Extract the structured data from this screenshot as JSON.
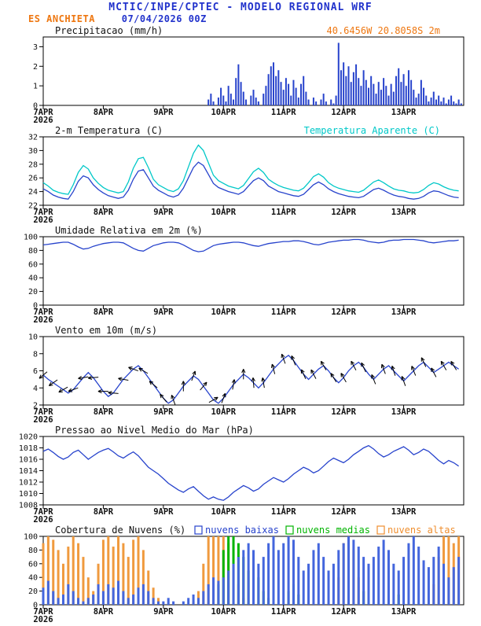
{
  "header": {
    "title": "MCTIC/INPE/CPTEC - MODELO REGIONAL WRF",
    "station": "ES ANCHIETA",
    "run": "07/04/2026 00Z",
    "colors": {
      "title_blue": "#2233cc",
      "station_orange": "#ee7711"
    }
  },
  "axis": {
    "x_hours": 168,
    "xtick_hours": [
      0,
      24,
      48,
      72,
      96,
      120,
      144
    ],
    "xtick_labels": [
      "7APR",
      "8APR",
      "9APR",
      "10APR",
      "11APR",
      "12APR",
      "13APR"
    ],
    "year_label": "2026"
  },
  "chart_data": [
    {
      "id": "precipitacao",
      "type": "bar",
      "title": "Precipitacao (mm/h)",
      "right_label": "40.6456W 20.8058S 2m",
      "right_label_color": "#ee7711",
      "ylabel": "mm/h",
      "ylim": [
        0,
        3.5
      ],
      "yticks": [
        0,
        1,
        2,
        3
      ],
      "step_hours": 1,
      "color": "#2743cc",
      "values": [
        0,
        0,
        0,
        0,
        0,
        0,
        0,
        0,
        0,
        0,
        0,
        0,
        0,
        0,
        0,
        0,
        0,
        0,
        0,
        0,
        0,
        0,
        0,
        0,
        0,
        0,
        0,
        0,
        0,
        0,
        0,
        0,
        0,
        0,
        0,
        0,
        0,
        0,
        0,
        0,
        0,
        0,
        0,
        0,
        0,
        0,
        0,
        0,
        0,
        0,
        0,
        0,
        0,
        0,
        0,
        0,
        0,
        0,
        0,
        0,
        0,
        0,
        0,
        0,
        0,
        0,
        0.3,
        0.6,
        0.2,
        0,
        0.4,
        0.9,
        0.5,
        0.2,
        1.0,
        0.6,
        0.3,
        1.4,
        2.1,
        1.2,
        0.7,
        0.3,
        0,
        0.5,
        0.8,
        0.4,
        0.2,
        0,
        0.6,
        1.0,
        1.6,
        2.0,
        2.2,
        1.5,
        1.8,
        1.2,
        0.8,
        1.4,
        1.1,
        0.5,
        1.3,
        0.9,
        0.4,
        1.1,
        1.5,
        0.7,
        0.3,
        0,
        0.4,
        0.2,
        0,
        0.3,
        0.6,
        0.2,
        0,
        0.3,
        0.1,
        0.5,
        3.2,
        1.8,
        2.2,
        1.5,
        2.0,
        1.2,
        1.7,
        2.1,
        1.4,
        1.0,
        1.8,
        1.3,
        0.9,
        1.5,
        1.1,
        0.6,
        1.2,
        0.8,
        1.4,
        1.0,
        0.5,
        1.1,
        0.7,
        1.5,
        1.9,
        1.2,
        1.6,
        1.0,
        1.8,
        1.3,
        0.8,
        0.4,
        0.6,
        1.3,
        0.9,
        0.5,
        0.2,
        0.4,
        0.7,
        0.3,
        0.5,
        0.2,
        0.4,
        0.1,
        0.3,
        0.5,
        0.2,
        0.1,
        0.3,
        0.1
      ]
    },
    {
      "id": "temperatura",
      "type": "line",
      "title": "2-m Temperatura (C)",
      "right_label": "Temperatura Aparente (C)",
      "right_label_color": "#00c8c8",
      "ylim": [
        22,
        32
      ],
      "yticks": [
        22,
        24,
        26,
        28,
        30,
        32
      ],
      "step_hours": 2,
      "series": [
        {
          "name": "2-m Temperatura (C)",
          "color": "#2743cc",
          "values": [
            24.4,
            24.0,
            23.5,
            23.2,
            23.0,
            22.9,
            24.0,
            25.5,
            26.3,
            26.0,
            25.0,
            24.3,
            23.8,
            23.4,
            23.2,
            23.0,
            23.2,
            24.2,
            25.8,
            27.0,
            27.2,
            26.0,
            24.8,
            24.2,
            23.8,
            23.4,
            23.2,
            23.5,
            24.5,
            26.0,
            27.5,
            28.3,
            27.8,
            26.5,
            25.2,
            24.6,
            24.3,
            24.0,
            23.8,
            23.6,
            24.0,
            24.8,
            25.6,
            26.0,
            25.6,
            24.8,
            24.4,
            24.0,
            23.8,
            23.6,
            23.4,
            23.3,
            23.6,
            24.3,
            25.0,
            25.4,
            25.0,
            24.4,
            24.0,
            23.7,
            23.5,
            23.3,
            23.2,
            23.1,
            23.3,
            23.8,
            24.3,
            24.5,
            24.2,
            23.8,
            23.5,
            23.3,
            23.2,
            23.0,
            22.9,
            23.0,
            23.3,
            23.8,
            24.1,
            24.0,
            23.7,
            23.4,
            23.2,
            23.1
          ]
        },
        {
          "name": "Temperatura Aparente (C)",
          "color": "#00c8c8",
          "values": [
            25.3,
            24.8,
            24.2,
            23.9,
            23.7,
            23.6,
            25.0,
            26.8,
            27.8,
            27.3,
            26.0,
            25.2,
            24.6,
            24.2,
            24.0,
            23.8,
            24.0,
            25.4,
            27.4,
            28.8,
            29.0,
            27.5,
            25.8,
            25.0,
            24.6,
            24.2,
            24.0,
            24.4,
            25.6,
            27.6,
            29.6,
            30.8,
            30.0,
            28.2,
            26.4,
            25.6,
            25.2,
            24.8,
            24.6,
            24.4,
            24.9,
            25.9,
            26.9,
            27.4,
            26.8,
            25.8,
            25.3,
            24.9,
            24.6,
            24.4,
            24.2,
            24.1,
            24.5,
            25.3,
            26.2,
            26.6,
            26.1,
            25.3,
            24.8,
            24.5,
            24.3,
            24.1,
            24.0,
            23.9,
            24.2,
            24.8,
            25.4,
            25.7,
            25.3,
            24.8,
            24.4,
            24.2,
            24.1,
            23.9,
            23.8,
            23.9,
            24.3,
            24.9,
            25.3,
            25.1,
            24.7,
            24.4,
            24.2,
            24.1
          ]
        }
      ]
    },
    {
      "id": "umidade",
      "type": "line",
      "title": "Umidade Relativa em 2m (%)",
      "ylim": [
        0,
        100
      ],
      "yticks": [
        0,
        20,
        40,
        60,
        80,
        100
      ],
      "step_hours": 2,
      "series": [
        {
          "name": "Umidade Relativa em 2m (%)",
          "color": "#2743cc",
          "values": [
            88,
            89,
            90,
            91,
            92,
            92,
            89,
            85,
            82,
            83,
            86,
            88,
            90,
            91,
            92,
            92,
            91,
            87,
            83,
            80,
            79,
            83,
            87,
            89,
            91,
            92,
            92,
            91,
            88,
            84,
            80,
            78,
            79,
            83,
            87,
            89,
            90,
            91,
            92,
            92,
            91,
            89,
            87,
            86,
            88,
            90,
            91,
            92,
            93,
            93,
            94,
            94,
            93,
            91,
            89,
            88,
            90,
            92,
            93,
            94,
            95,
            95,
            96,
            96,
            95,
            93,
            92,
            91,
            92,
            94,
            95,
            95,
            96,
            96,
            96,
            95,
            94,
            92,
            91,
            92,
            93,
            94,
            94,
            95
          ]
        }
      ]
    },
    {
      "id": "vento",
      "type": "line_barbs",
      "title": "Vento em 10m (m/s)",
      "ylim": [
        2,
        10
      ],
      "yticks": [
        2,
        4,
        6,
        8,
        10
      ],
      "step_hours": 2,
      "series": [
        {
          "name": "Vento em 10m (m/s)",
          "color": "#2743cc",
          "values": [
            5.5,
            5.0,
            4.6,
            4.2,
            3.8,
            3.4,
            3.8,
            4.5,
            5.2,
            5.8,
            5.2,
            4.4,
            3.6,
            3.0,
            3.4,
            4.2,
            5.0,
            5.6,
            6.2,
            6.6,
            6.0,
            5.2,
            4.4,
            3.6,
            2.8,
            2.2,
            2.6,
            3.4,
            4.2,
            4.8,
            5.4,
            5.0,
            4.2,
            3.4,
            2.6,
            2.2,
            2.8,
            3.6,
            4.4,
            5.0,
            5.6,
            5.2,
            4.6,
            4.0,
            4.6,
            5.4,
            6.2,
            6.8,
            7.4,
            7.8,
            7.2,
            6.4,
            5.6,
            5.0,
            5.6,
            6.2,
            6.6,
            6.0,
            5.2,
            4.6,
            5.2,
            6.0,
            6.6,
            7.0,
            6.4,
            5.6,
            5.0,
            5.6,
            6.2,
            6.6,
            6.0,
            5.4,
            4.8,
            5.4,
            6.0,
            6.6,
            7.0,
            6.4,
            5.8,
            6.2,
            6.6,
            7.0,
            6.6,
            6.2
          ]
        }
      ],
      "barbs": {
        "step_hours": 4,
        "color": "#000000",
        "dir_deg": [
          50,
          55,
          60,
          70,
          80,
          85,
          90,
          95,
          100,
          110,
          120,
          130,
          140,
          160,
          180,
          200,
          220,
          240,
          200,
          190,
          180,
          175,
          170,
          165,
          160,
          158,
          155,
          152,
          150,
          148,
          150,
          152,
          155,
          158,
          160,
          162,
          160,
          158,
          155,
          152,
          150,
          148
        ]
      }
    },
    {
      "id": "pressao",
      "type": "line",
      "title": "Pressao ao Nivel Medio do Mar (hPa)",
      "ylim": [
        1008,
        1020
      ],
      "yticks": [
        1008,
        1010,
        1012,
        1014,
        1016,
        1018,
        1020
      ],
      "step_hours": 2,
      "series": [
        {
          "name": "Pressao ao Nivel Medio do Mar (hPa)",
          "color": "#2743cc",
          "values": [
            1017.4,
            1017.8,
            1017.2,
            1016.5,
            1016.0,
            1016.4,
            1017.2,
            1017.6,
            1016.8,
            1016.0,
            1016.6,
            1017.2,
            1017.6,
            1017.9,
            1017.3,
            1016.6,
            1016.2,
            1016.8,
            1017.3,
            1016.6,
            1015.6,
            1014.6,
            1014.0,
            1013.4,
            1012.6,
            1011.8,
            1011.2,
            1010.6,
            1010.2,
            1010.8,
            1011.2,
            1010.4,
            1009.6,
            1009.0,
            1009.4,
            1009.0,
            1008.8,
            1009.4,
            1010.2,
            1010.8,
            1011.4,
            1011.0,
            1010.4,
            1010.8,
            1011.6,
            1012.2,
            1012.8,
            1012.4,
            1012.0,
            1012.6,
            1013.4,
            1014.0,
            1014.6,
            1014.2,
            1013.6,
            1014.0,
            1014.8,
            1015.6,
            1016.2,
            1015.8,
            1015.4,
            1016.0,
            1016.8,
            1017.4,
            1018.0,
            1018.4,
            1017.8,
            1017.0,
            1016.4,
            1016.8,
            1017.4,
            1017.8,
            1018.2,
            1017.6,
            1016.8,
            1017.2,
            1017.8,
            1017.4,
            1016.6,
            1015.8,
            1015.2,
            1015.8,
            1015.4,
            1014.8
          ]
        }
      ]
    },
    {
      "id": "nuvens",
      "type": "multibar",
      "title": "Cobertura de Nuvens (%)",
      "legend": [
        {
          "label": "nuvens baixas",
          "color": "#2743cc"
        },
        {
          "label": "nuvens medias",
          "color": "#00b400"
        },
        {
          "label": "nuvens altas",
          "color": "#ef8e2e"
        }
      ],
      "ylim": [
        0,
        100
      ],
      "yticks": [
        0,
        20,
        40,
        60,
        80,
        100
      ],
      "step_hours": 2,
      "series": [
        {
          "name": "nuvens altas",
          "color": "#f09a3e",
          "values": [
            90,
            100,
            95,
            80,
            60,
            85,
            100,
            90,
            70,
            40,
            20,
            60,
            95,
            100,
            85,
            100,
            90,
            70,
            95,
            100,
            80,
            50,
            25,
            10,
            0,
            0,
            0,
            0,
            0,
            0,
            5,
            20,
            60,
            100,
            100,
            100,
            100,
            90,
            60,
            30,
            10,
            0,
            0,
            0,
            0,
            0,
            0,
            0,
            0,
            0,
            0,
            0,
            0,
            0,
            0,
            0,
            0,
            0,
            0,
            40,
            90,
            100,
            80,
            40,
            20,
            0,
            0,
            0,
            0,
            0,
            0,
            0,
            0,
            0,
            0,
            0,
            0,
            0,
            30,
            70,
            100,
            100,
            90,
            100
          ]
        },
        {
          "name": "nuvens medias",
          "color": "#00b400",
          "values": [
            0,
            0,
            0,
            0,
            0,
            0,
            0,
            0,
            0,
            0,
            0,
            0,
            0,
            0,
            0,
            0,
            0,
            0,
            0,
            0,
            0,
            0,
            0,
            0,
            0,
            0,
            0,
            0,
            0,
            0,
            0,
            0,
            0,
            0,
            0,
            30,
            80,
            100,
            100,
            90,
            70,
            50,
            30,
            40,
            20,
            10,
            0,
            0,
            0,
            20,
            30,
            15,
            0,
            0,
            0,
            0,
            0,
            0,
            0,
            0,
            0,
            0,
            0,
            0,
            20,
            10,
            0,
            0,
            0,
            0,
            0,
            15,
            0,
            0,
            0,
            0,
            0,
            0,
            0,
            0,
            0,
            0,
            0,
            0
          ]
        },
        {
          "name": "nuvens baixas",
          "color": "#4466dd",
          "values": [
            25,
            35,
            20,
            10,
            15,
            30,
            20,
            10,
            5,
            10,
            15,
            30,
            20,
            30,
            25,
            35,
            20,
            10,
            15,
            25,
            30,
            20,
            10,
            5,
            5,
            10,
            5,
            0,
            5,
            10,
            15,
            10,
            20,
            30,
            40,
            35,
            40,
            50,
            60,
            70,
            80,
            90,
            80,
            60,
            70,
            90,
            100,
            80,
            90,
            100,
            95,
            70,
            50,
            60,
            80,
            90,
            70,
            50,
            60,
            80,
            90,
            100,
            95,
            85,
            70,
            60,
            70,
            85,
            95,
            80,
            60,
            50,
            70,
            90,
            100,
            85,
            65,
            55,
            70,
            85,
            60,
            40,
            55,
            70
          ]
        }
      ]
    }
  ]
}
